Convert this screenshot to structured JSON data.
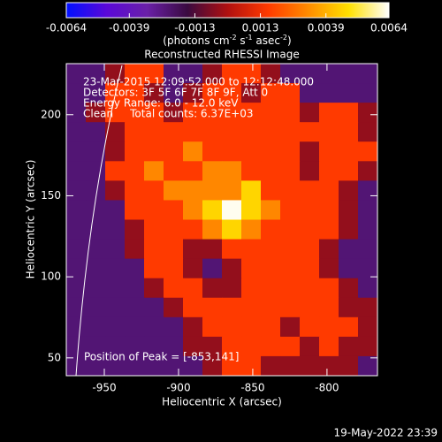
{
  "chart_data": {
    "type": "heatmap",
    "title": "Reconstructed RHESSI Image",
    "x_label": "Heliocentric X (arcsec)",
    "y_label": "Heliocentric Y (arcsec)",
    "colorbar_label": [
      "(photons cm",
      "-2",
      " s",
      "-1",
      " asec",
      "-2",
      ")"
    ],
    "annotations": [
      "23-Mar-2015 12:09:52.000 to 12:12:48.000",
      "Detectors: 3F 5F 6F 7F 8F 9F, Att 0",
      "Energy Range: 6.0 - 12.0 keV",
      "Clean     Total counts: 6.37E+03"
    ],
    "peak_label": "Position of Peak = [-853,141]",
    "footer": "19-May-2022 23:39",
    "xlim": [
      -975.6,
      -766
    ],
    "ylim": [
      231.5,
      39
    ],
    "xticks": [
      -950,
      -900,
      -850,
      -800
    ],
    "yticks": [
      50,
      100,
      150,
      200
    ],
    "clim": [
      -0.0064,
      0.0064
    ],
    "cticks": [
      -0.0064,
      -0.0039,
      -0.0013,
      0.0013,
      0.0039,
      0.0064
    ],
    "colorscale": [
      "#0010ff",
      "#5a08d8",
      "#6a20a8",
      "#3a0a40",
      "#b01010",
      "#ff3a00",
      "#ff8c00",
      "#ffe000",
      "#ffffff"
    ],
    "z": [
      [
        -0.0024,
        -0.0024,
        -0.0004,
        0.0016,
        0.0016,
        -0.0024,
        -0.0024,
        -0.0004,
        0.0016,
        0.0016,
        -0.0004,
        -0.0024,
        -0.0024,
        -0.0024,
        -0.0024,
        -0.0024
      ],
      [
        -0.0024,
        -0.0024,
        0.0016,
        0.0016,
        -0.0004,
        -0.0024,
        -0.0004,
        0.0016,
        0.0016,
        -0.0004,
        0.0016,
        0.0016,
        -0.0024,
        -0.0024,
        -0.0024,
        -0.0024
      ],
      [
        -0.0024,
        -0.0004,
        0.0016,
        0.0016,
        0.0016,
        -0.0004,
        0.0016,
        0.0016,
        0.0016,
        0.0016,
        0.0016,
        0.0016,
        -0.0004,
        0.0016,
        0.0016,
        -0.0004
      ],
      [
        -0.0024,
        -0.0024,
        -0.0004,
        0.0016,
        0.0016,
        0.0016,
        0.0016,
        0.0016,
        0.0016,
        0.0016,
        0.0016,
        0.0016,
        0.0016,
        0.0016,
        0.0016,
        -0.0004
      ],
      [
        -0.0024,
        -0.0024,
        -0.0004,
        0.0016,
        0.0016,
        0.0016,
        0.0031,
        0.0016,
        0.0016,
        0.0016,
        0.0016,
        0.0016,
        -0.0004,
        0.0016,
        0.0016,
        0.0016
      ],
      [
        -0.0024,
        -0.0024,
        0.0016,
        0.0016,
        0.0031,
        0.0016,
        0.0016,
        0.0031,
        0.0031,
        0.0016,
        0.0016,
        0.0016,
        -0.0004,
        0.0016,
        0.0016,
        -0.0004
      ],
      [
        -0.0024,
        -0.0024,
        -0.0004,
        0.0016,
        0.0016,
        0.0031,
        0.0031,
        0.0031,
        0.0031,
        0.0046,
        0.0016,
        0.0016,
        0.0016,
        0.0016,
        -0.0004,
        -0.0024
      ],
      [
        -0.0024,
        -0.0024,
        -0.0024,
        0.0016,
        0.0016,
        0.0016,
        0.0031,
        0.0046,
        0.0063,
        0.0046,
        0.0031,
        0.0016,
        0.0016,
        0.0016,
        -0.0004,
        -0.0024
      ],
      [
        -0.0024,
        -0.0024,
        -0.0024,
        -0.0004,
        0.0016,
        0.0016,
        0.0016,
        0.0031,
        0.0046,
        0.0031,
        0.0016,
        0.0016,
        0.0016,
        0.0016,
        -0.0004,
        -0.0024
      ],
      [
        -0.0024,
        -0.0024,
        -0.0024,
        -0.0004,
        0.0016,
        0.0016,
        -0.0004,
        -0.0004,
        0.0016,
        0.0016,
        0.0016,
        0.0016,
        0.0016,
        -0.0004,
        -0.0024,
        -0.0024
      ],
      [
        -0.0024,
        -0.0024,
        -0.0024,
        -0.0024,
        0.0016,
        0.0016,
        -0.0004,
        -0.0024,
        -0.0004,
        0.0016,
        0.0016,
        0.0016,
        0.0016,
        -0.0004,
        -0.0024,
        -0.0024
      ],
      [
        -0.0024,
        -0.0024,
        -0.0024,
        -0.0024,
        -0.0004,
        0.0016,
        0.0016,
        -0.0004,
        -0.0004,
        0.0016,
        0.0016,
        0.0016,
        0.0016,
        0.0016,
        -0.0004,
        -0.0024
      ],
      [
        -0.0024,
        -0.0024,
        -0.0024,
        -0.0024,
        -0.0024,
        -0.0004,
        0.0016,
        0.0016,
        0.0016,
        0.0016,
        0.0016,
        0.0016,
        0.0016,
        0.0016,
        -0.0004,
        -0.0004
      ],
      [
        -0.0024,
        -0.0024,
        -0.0024,
        -0.0024,
        -0.0024,
        -0.0024,
        -0.0004,
        0.0016,
        0.0016,
        0.0016,
        0.0016,
        -0.0004,
        0.0016,
        0.0016,
        0.0016,
        -0.0004
      ],
      [
        -0.0024,
        -0.0024,
        -0.0024,
        -0.0024,
        -0.0024,
        -0.0024,
        -0.0004,
        -0.0004,
        0.0016,
        0.0016,
        0.0016,
        0.0016,
        -0.0004,
        0.0016,
        -0.0004,
        -0.0004
      ],
      [
        -0.0024,
        -0.0024,
        -0.0024,
        -0.0024,
        -0.0024,
        -0.0024,
        -0.0024,
        -0.0004,
        0.0016,
        0.0016,
        -0.0004,
        -0.0004,
        -0.0004,
        -0.0004,
        -0.0004,
        -0.0024
      ]
    ]
  }
}
